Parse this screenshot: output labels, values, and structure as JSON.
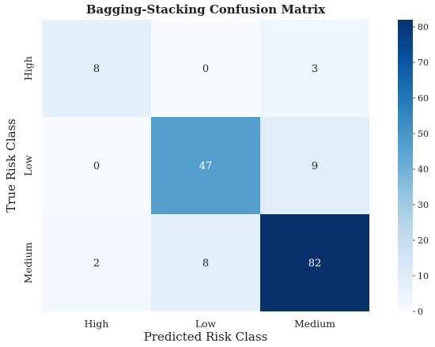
{
  "chart_data": {
    "type": "heatmap",
    "title": "Bagging-Stacking Confusion Matrix",
    "xlabel": "Predicted Risk Class",
    "ylabel": "True Risk Class",
    "x_categories": [
      "High",
      "Low",
      "Medium"
    ],
    "y_categories": [
      "High",
      "Low",
      "Medium"
    ],
    "values": [
      [
        8,
        0,
        3
      ],
      [
        0,
        47,
        9
      ],
      [
        2,
        8,
        82
      ]
    ],
    "colorbar": {
      "range": [
        0,
        82
      ],
      "ticks": [
        0,
        10,
        20,
        30,
        40,
        50,
        60,
        70,
        80
      ],
      "colormap": "Blues",
      "low_color": "#f7fbff",
      "high_color": "#08306b"
    },
    "grid": false,
    "legend": "colorbar-right"
  }
}
